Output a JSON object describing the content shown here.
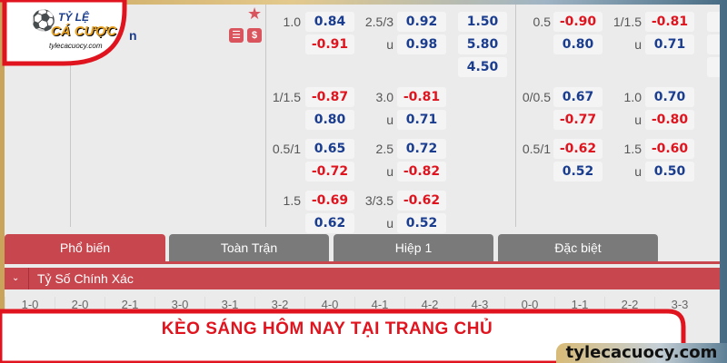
{
  "logo": {
    "line1": "TỶ LỆ",
    "line2": "CÁ CƯỢC",
    "site": "tylecacuocy.com"
  },
  "match": {
    "team_fragment": "n",
    "icons": [
      "star-icon",
      "stats-icon",
      "dollar-icon"
    ]
  },
  "odds_rows": [
    {
      "h1": "1.0",
      "a1": "0.84",
      "h2": "2.5/3",
      "a2": "0.92",
      "x": "1.50",
      "h3": "0.5",
      "a3": "-0.90",
      "h4": "1/1.5",
      "a4": "-0.81",
      "b1": "-0.91",
      "u2": "u",
      "b2": "0.98",
      "y": "5.80",
      "b3": "0.80",
      "u4": "u",
      "b4": "0.71",
      "z": "4.50"
    },
    {
      "h1": "1/1.5",
      "a1": "-0.87",
      "h2": "3.0",
      "a2": "-0.81",
      "h3": "0/0.5",
      "a3": "0.67",
      "h4": "1.0",
      "a4": "0.70",
      "b1": "0.80",
      "u2": "u",
      "b2": "0.71",
      "b3": "-0.77",
      "u4": "u",
      "b4": "-0.80"
    },
    {
      "h1": "0.5/1",
      "a1": "0.65",
      "h2": "2.5",
      "a2": "0.72",
      "h3": "0.5/1",
      "a3": "-0.62",
      "h4": "1.5",
      "a4": "-0.60",
      "b1": "-0.72",
      "u2": "u",
      "b2": "-0.82",
      "b3": "0.52",
      "u4": "u",
      "b4": "0.50"
    },
    {
      "h1": "1.5",
      "a1": "-0.69",
      "h2": "3/3.5",
      "a2": "-0.62",
      "b1": "0.62",
      "u2": "u",
      "b2": "0.52"
    }
  ],
  "tabs": [
    {
      "label": "Phổ biến",
      "active": true
    },
    {
      "label": "Toàn Trận"
    },
    {
      "label": "Hiệp 1"
    },
    {
      "label": "Đặc biệt"
    }
  ],
  "section": {
    "title": "Tỷ Số Chính Xác"
  },
  "scores": [
    "1-0",
    "2-0",
    "2-1",
    "3-0",
    "3-1",
    "3-2",
    "4-0",
    "4-1",
    "4-2",
    "4-3",
    "0-0",
    "1-1",
    "2-2",
    "3-3"
  ],
  "banner": {
    "title": "KÈO SÁNG HÔM NAY TẠI TRANG CHỦ",
    "domain": "tylecacuocy.com"
  },
  "colors": {
    "positive": "#1a3d8f",
    "negative": "#e0141e",
    "tab_active": "#c8474f",
    "tab_inactive": "#7a7a7a"
  }
}
